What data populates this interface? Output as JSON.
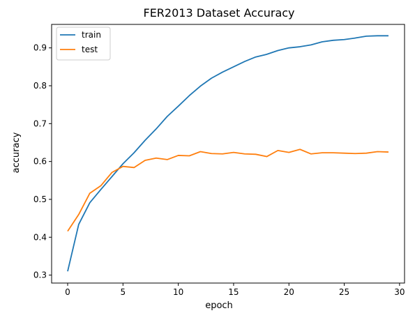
{
  "chart_data": {
    "type": "line",
    "title": "FER2013 Dataset Accuracy",
    "xlabel": "epoch",
    "ylabel": "accuracy",
    "xlim": [
      -1.45,
      30.45
    ],
    "ylim": [
      0.279,
      0.962
    ],
    "xticks": [
      0,
      5,
      10,
      15,
      20,
      25,
      30
    ],
    "yticks": [
      0.3,
      0.4,
      0.5,
      0.6,
      0.7,
      0.8,
      0.9
    ],
    "grid": false,
    "legend_position": "top-left",
    "x": [
      0,
      1,
      2,
      3,
      4,
      5,
      6,
      7,
      8,
      9,
      10,
      11,
      12,
      13,
      14,
      15,
      16,
      17,
      18,
      19,
      20,
      21,
      22,
      23,
      24,
      25,
      26,
      27,
      28,
      29
    ],
    "series": [
      {
        "name": "train",
        "color": "#1f77b4",
        "values": [
          0.31,
          0.434,
          0.491,
          0.526,
          0.56,
          0.594,
          0.623,
          0.656,
          0.686,
          0.719,
          0.746,
          0.774,
          0.799,
          0.82,
          0.836,
          0.85,
          0.864,
          0.876,
          0.883,
          0.893,
          0.9,
          0.903,
          0.908,
          0.916,
          0.92,
          0.922,
          0.926,
          0.931,
          0.932,
          0.932
        ]
      },
      {
        "name": "test",
        "color": "#ff7f0e",
        "values": [
          0.416,
          0.46,
          0.516,
          0.536,
          0.571,
          0.587,
          0.584,
          0.603,
          0.609,
          0.605,
          0.616,
          0.615,
          0.626,
          0.621,
          0.62,
          0.624,
          0.62,
          0.619,
          0.613,
          0.629,
          0.624,
          0.632,
          0.62,
          0.623,
          0.623,
          0.622,
          0.621,
          0.622,
          0.626,
          0.625
        ]
      }
    ]
  }
}
